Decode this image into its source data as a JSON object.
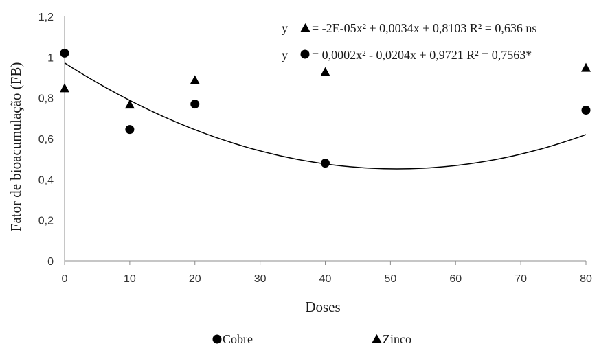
{
  "chart_data": {
    "type": "scatter",
    "xlabel": "Doses",
    "ylabel": "Fator de bioacumulação (FB)",
    "xlim": [
      0,
      80
    ],
    "ylim": [
      0,
      1.2
    ],
    "x_ticks": [
      "0",
      "10",
      "20",
      "30",
      "40",
      "50",
      "60",
      "70",
      "80"
    ],
    "x_tick_values": [
      0,
      10,
      20,
      30,
      40,
      50,
      60,
      70,
      80
    ],
    "y_ticks": [
      "0",
      "0,2",
      "0,4",
      "0,6",
      "0,8",
      "1",
      "1,2"
    ],
    "y_tick_values": [
      0,
      0.2,
      0.4,
      0.6,
      0.8,
      1.0,
      1.2
    ],
    "grid": false,
    "legend_position": "bottom",
    "series": [
      {
        "name": "Cobre",
        "marker": "circle",
        "color": "#000000",
        "x": [
          0,
          10,
          20,
          40,
          80
        ],
        "y": [
          1.02,
          0.645,
          0.77,
          0.48,
          0.74
        ],
        "trendline": {
          "a": 0.0002,
          "b": -0.0204,
          "c": 0.9721,
          "label": "= 0,0002x² - 0,0204x + 0,9721 R² = 0,7563*"
        }
      },
      {
        "name": "Zinco",
        "marker": "triangle",
        "color": "#000000",
        "x": [
          0,
          10,
          20,
          40,
          80
        ],
        "y": [
          0.85,
          0.77,
          0.89,
          0.93,
          0.95
        ],
        "trendline": {
          "label": "= -2E-05x² + 0,0034x + 0,8103 R² = 0,636 ns"
        }
      }
    ],
    "equation_prefix": "y"
  }
}
